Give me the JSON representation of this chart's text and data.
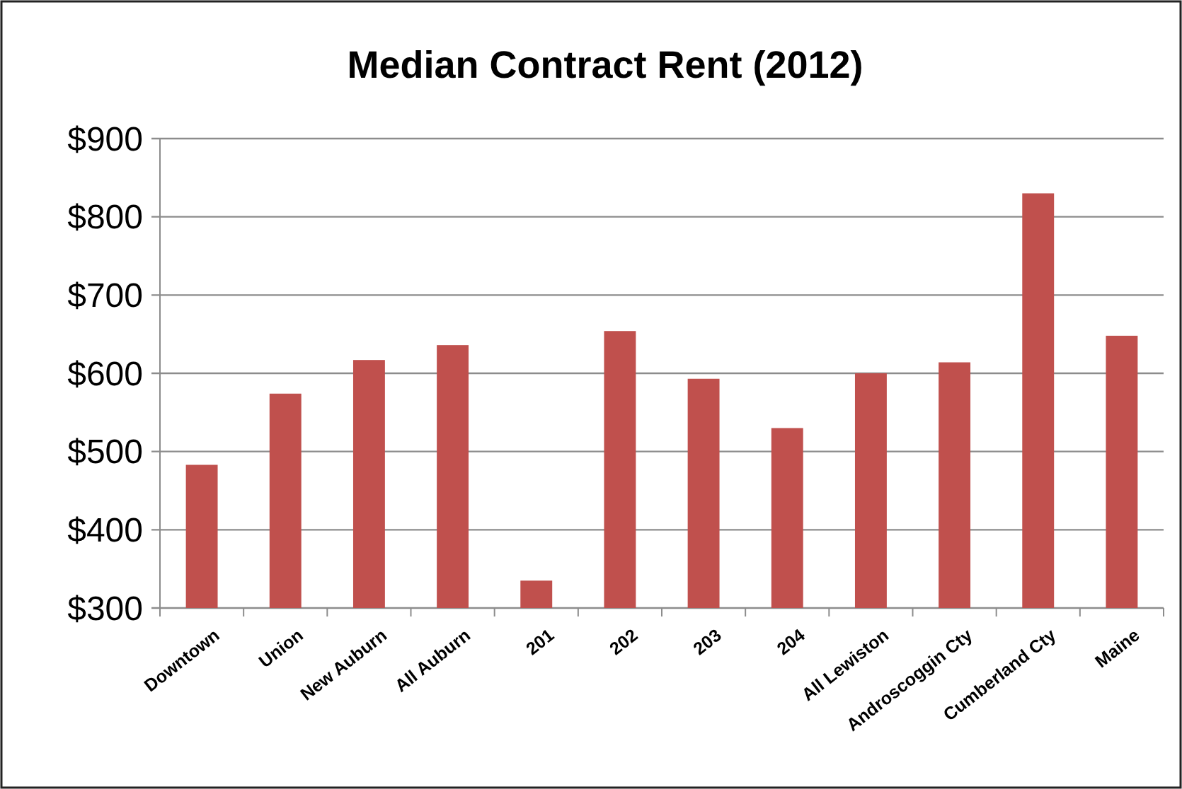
{
  "chart_data": {
    "type": "bar",
    "title": "Median Contract Rent (2012)",
    "categories": [
      "Downtown",
      "Union",
      "New Auburn",
      "All Auburn",
      "201",
      "202",
      "203",
      "204",
      "All Lewiston",
      "Androscoggin Cty",
      "Cumberland Cty",
      "Maine"
    ],
    "values": [
      483,
      574,
      617,
      636,
      335,
      654,
      593,
      530,
      600,
      614,
      830,
      648
    ],
    "color": "#c0504d",
    "ylim": [
      300,
      900
    ],
    "yticks": [
      {
        "value": 300,
        "label": "$300"
      },
      {
        "value": 400,
        "label": "$400"
      },
      {
        "value": 500,
        "label": "$500"
      },
      {
        "value": 600,
        "label": "$600"
      },
      {
        "value": 700,
        "label": "$700"
      },
      {
        "value": 800,
        "label": "$800"
      },
      {
        "value": 900,
        "label": "$900"
      }
    ],
    "grid": "y"
  }
}
